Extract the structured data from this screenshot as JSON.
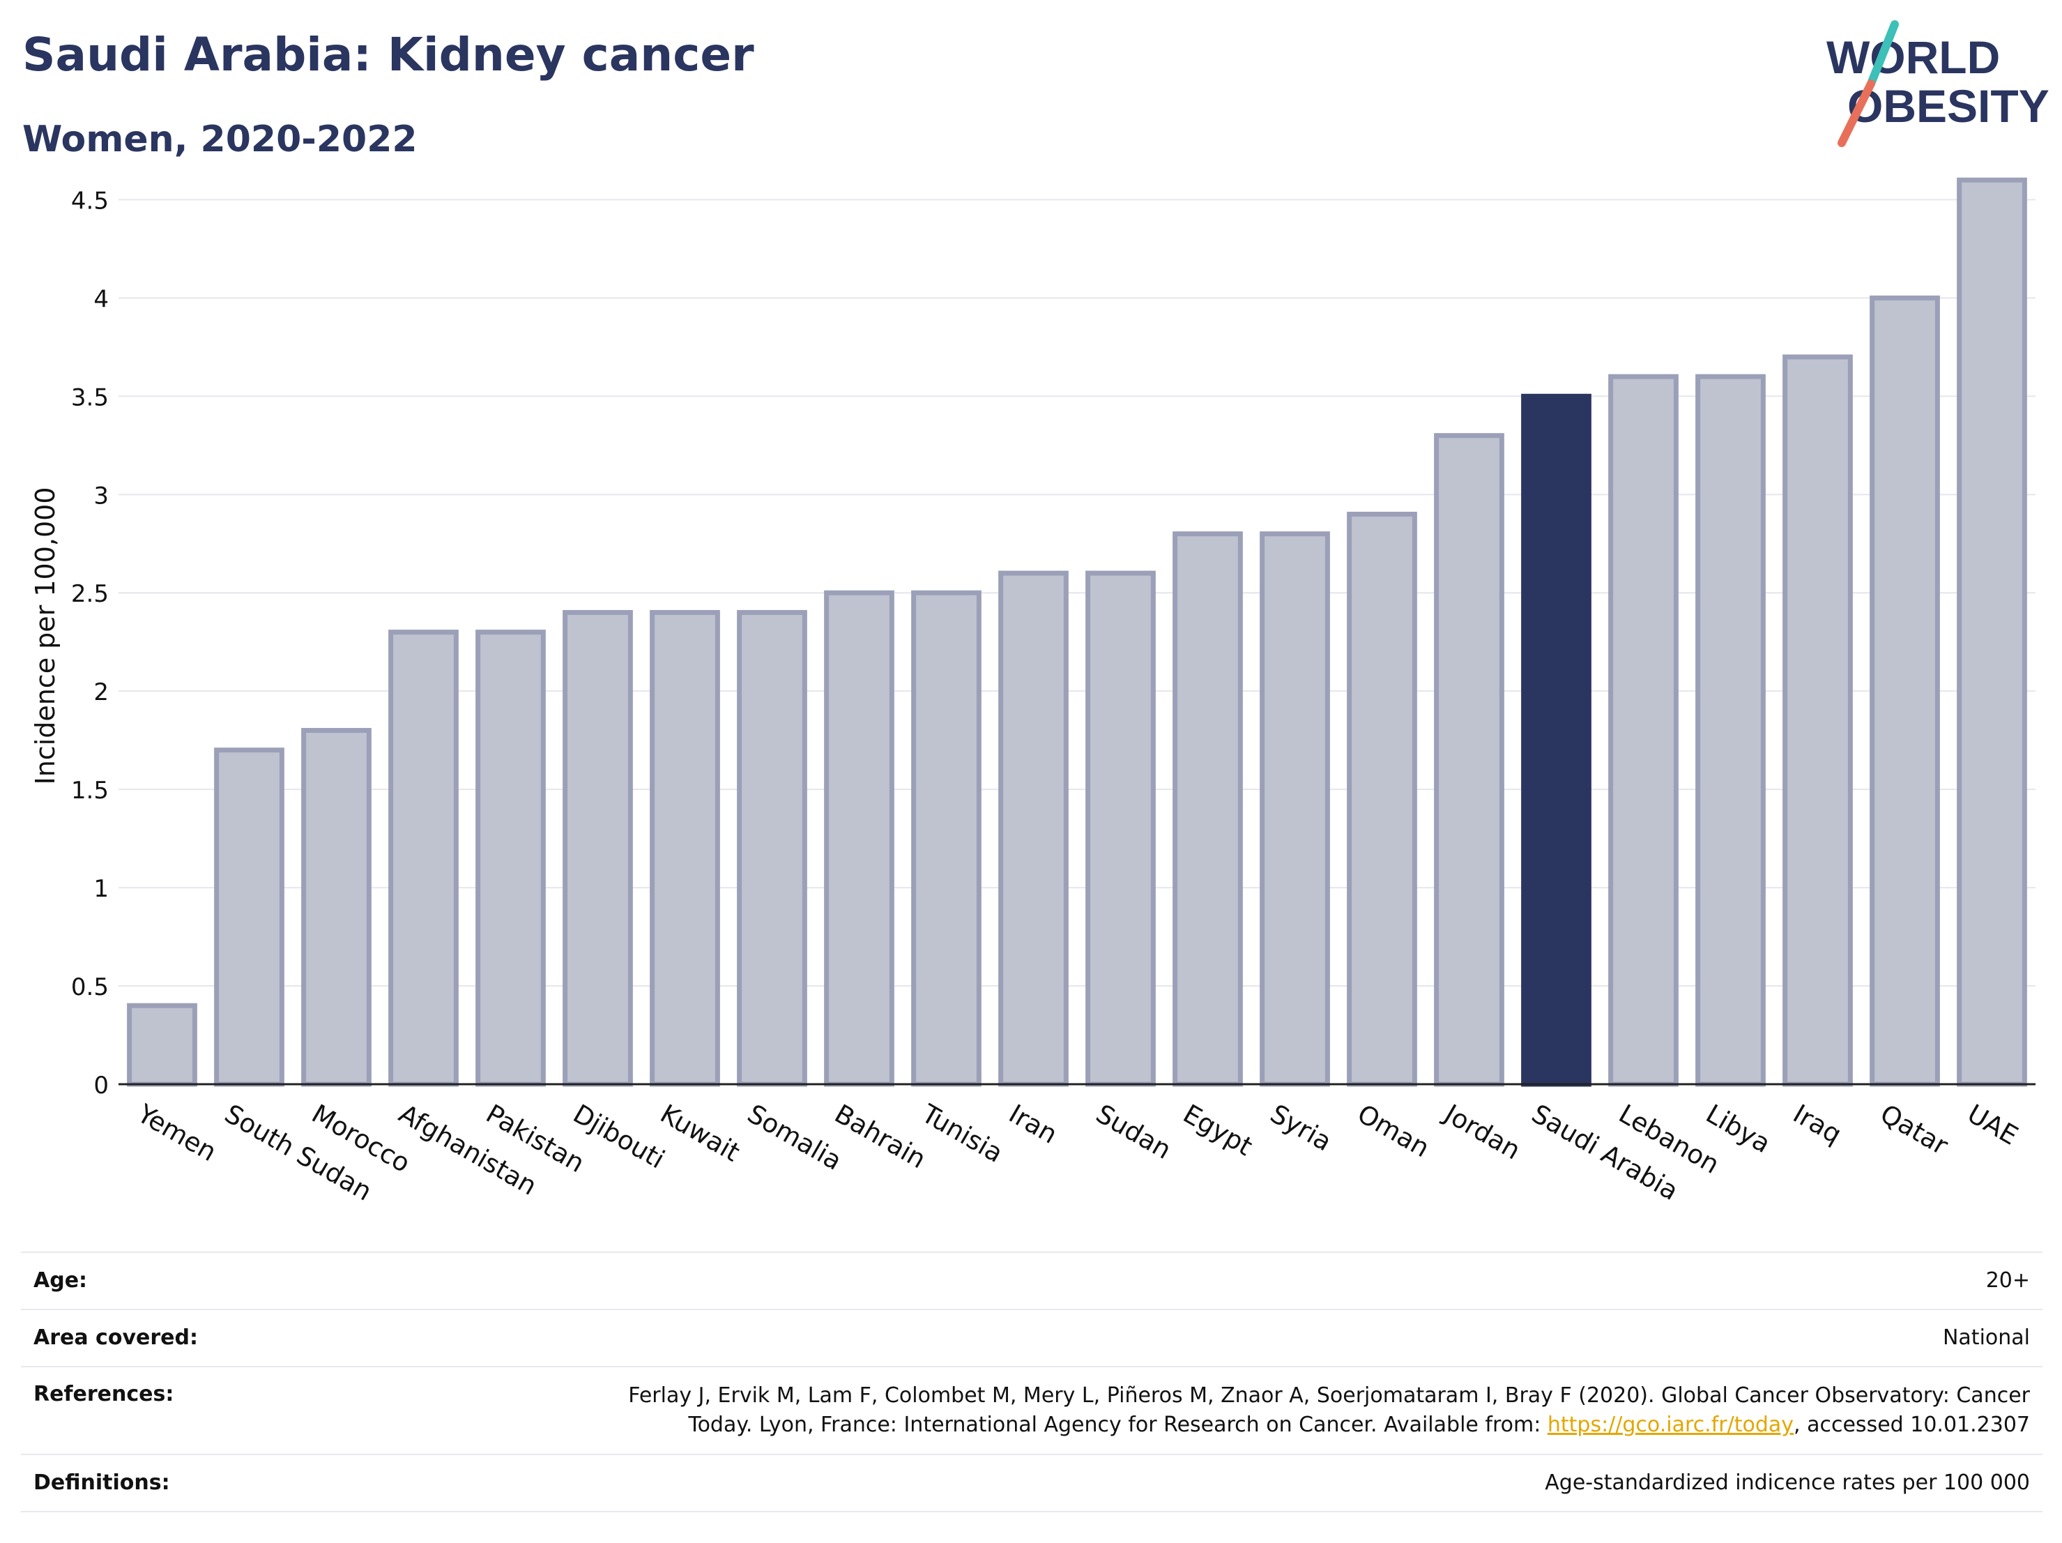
{
  "header": {
    "title": "Saudi Arabia: Kidney cancer",
    "subtitle": "Women, 2020-2022"
  },
  "logo": {
    "line1": "WORLD",
    "line2": "OBESITY",
    "accent_teal": "#3cc0b8",
    "accent_coral": "#e8705a"
  },
  "chart_data": {
    "type": "bar",
    "title": "Saudi Arabia: Kidney cancer",
    "subtitle": "Women, 2020-2022",
    "ylabel": "Incidence per 100,000",
    "xlabel": "",
    "ylim": [
      0,
      4.7
    ],
    "yticks": [
      "0",
      "0.5",
      "1",
      "1.5",
      "2",
      "2.5",
      "3",
      "3.5",
      "4",
      "4.5"
    ],
    "grid": true,
    "categories": [
      "Yemen",
      "South Sudan",
      "Morocco",
      "Afghanistan",
      "Pakistan",
      "Djibouti",
      "Kuwait",
      "Somalia",
      "Bahrain",
      "Tunisia",
      "Iran",
      "Sudan",
      "Egypt",
      "Syria",
      "Oman",
      "Jordan",
      "Saudi Arabia",
      "Lebanon",
      "Libya",
      "Iraq",
      "Qatar",
      "UAE"
    ],
    "values": [
      0.4,
      1.7,
      1.8,
      2.3,
      2.3,
      2.4,
      2.4,
      2.4,
      2.5,
      2.5,
      2.6,
      2.6,
      2.8,
      2.8,
      2.9,
      3.3,
      3.5,
      3.6,
      3.6,
      3.7,
      4.0,
      4.6
    ],
    "highlight": "Saudi Arabia",
    "colors": {
      "bar": "#bfc2cf",
      "bar_border": "#9ba0b8",
      "highlight": "#2a3560",
      "grid": "#e6e6ec",
      "axis": "#222222"
    }
  },
  "meta": {
    "age_label": "Age:",
    "age_value": "20+",
    "area_label": "Area covered:",
    "area_value": "National",
    "references_label": "References:",
    "references_line1": "Ferlay J, Ervik M, Lam F, Colombet M, Mery L, Piñeros M, Znaor A, Soerjomataram I, Bray F (2020). Global Cancer Observatory: Cancer",
    "references_line2_pre": "Today. Lyon, France: International Agency for Research on Cancer. Available from: ",
    "references_link": "https://gco.iarc.fr/today",
    "references_line2_post": ", accessed 10.01.2307",
    "definitions_label": "Definitions:",
    "definitions_value": "Age-standardized indicence rates per 100 000"
  }
}
